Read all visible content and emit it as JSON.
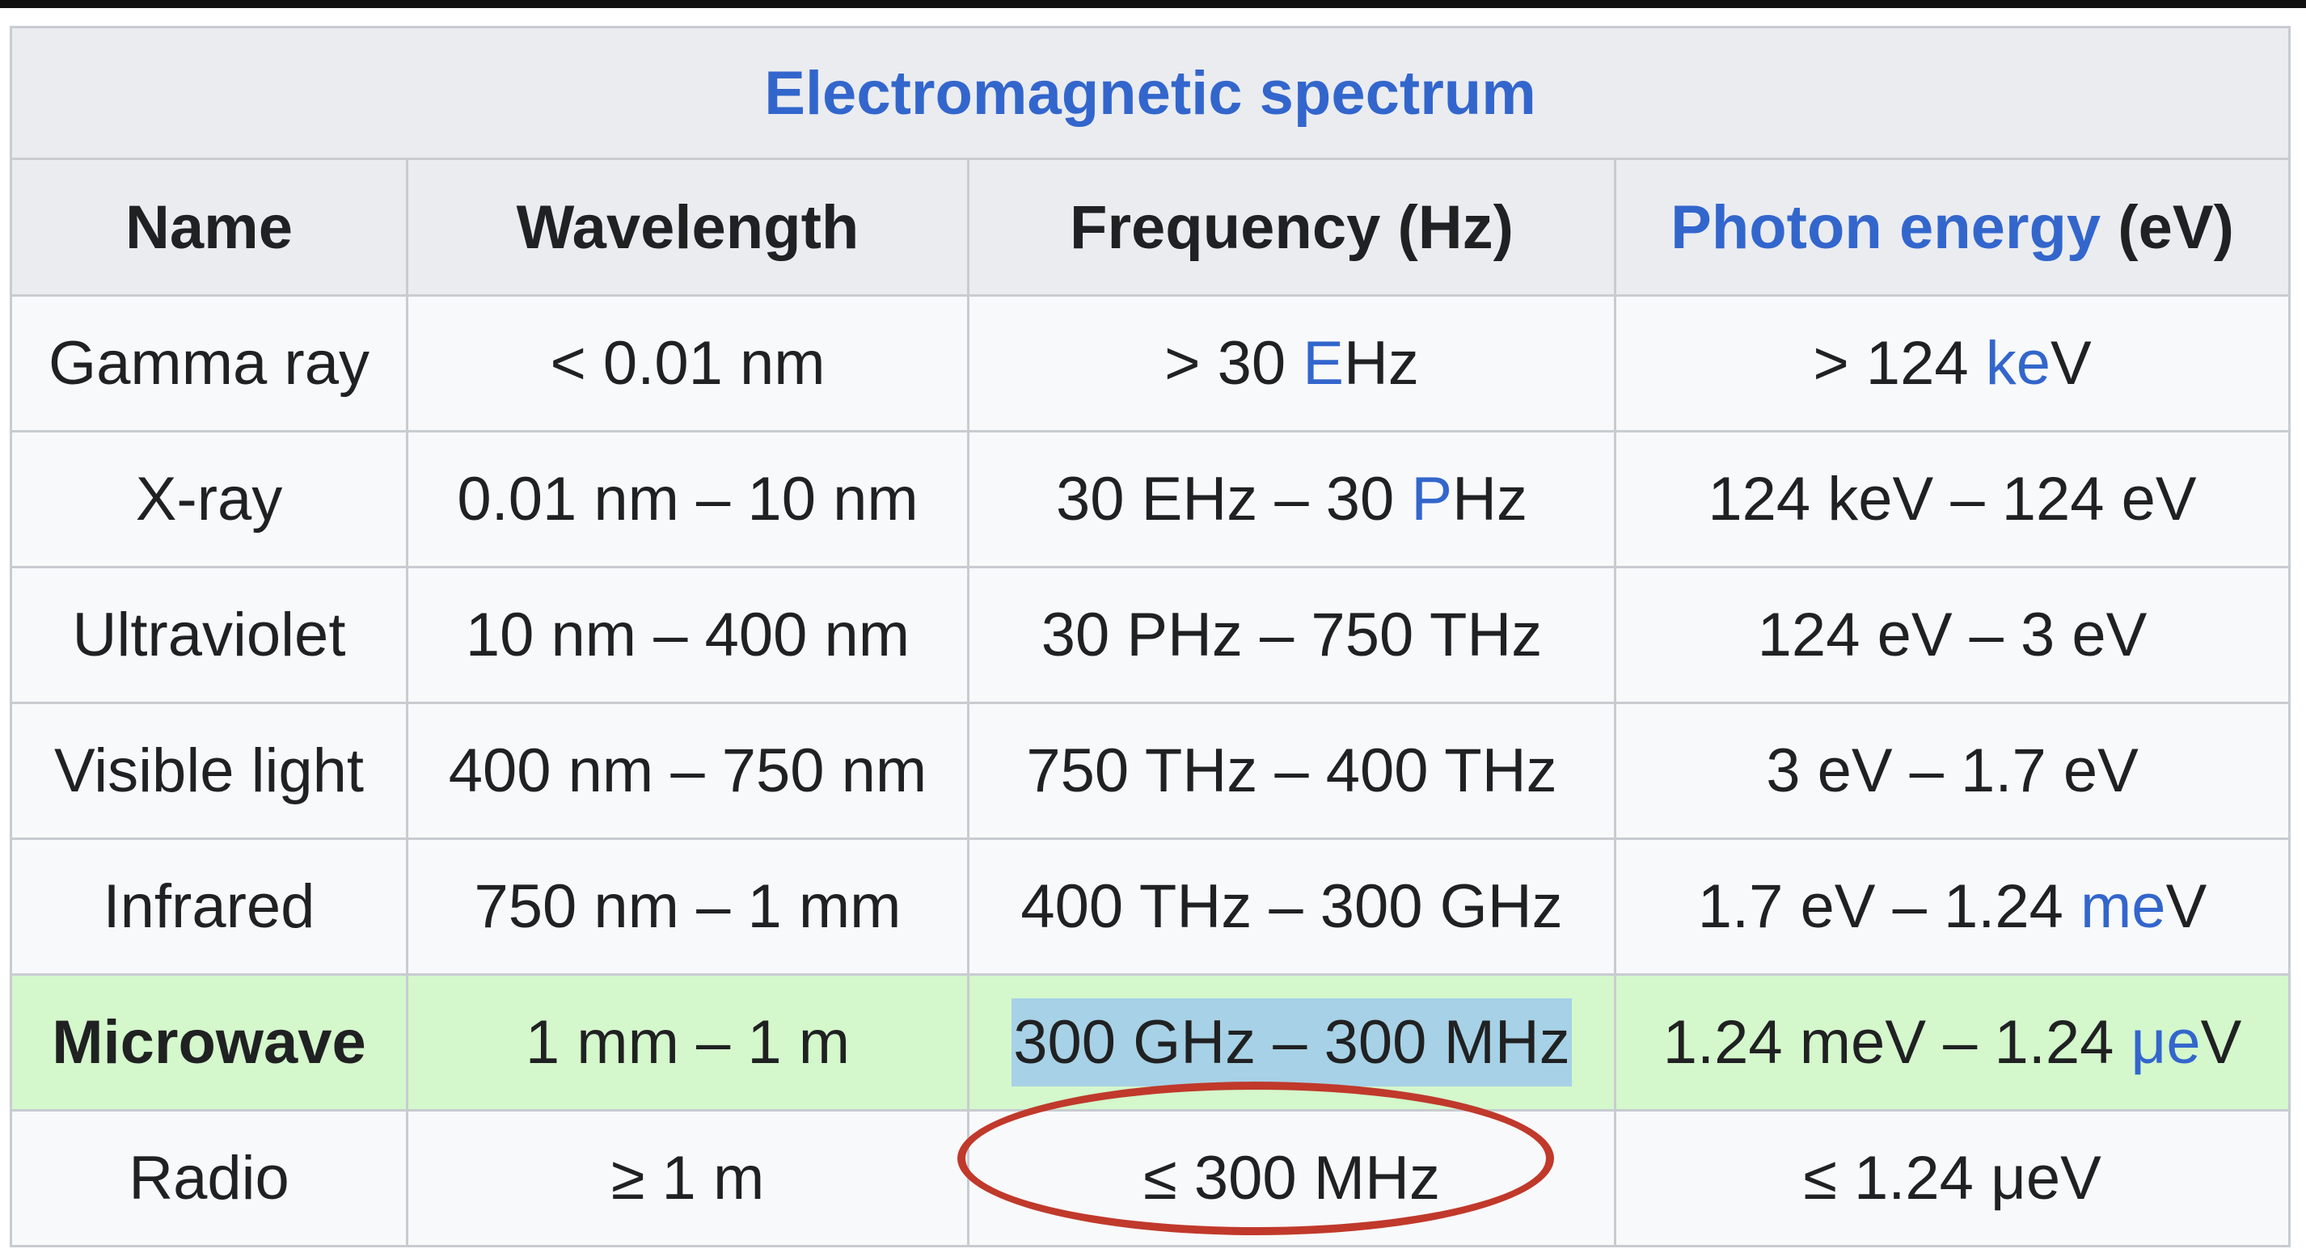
{
  "table": {
    "caption": "Electromagnetic spectrum",
    "headers": {
      "name": "Name",
      "wavelength": "Wavelength",
      "frequency": "Frequency (Hz)",
      "energy_label": "Photon energy",
      "energy_unit": " (eV)"
    },
    "rows": [
      {
        "name": "Gamma ray",
        "wavelength": "< 0.01 nm",
        "frequency": {
          "pre": "> 30 ",
          "link": "E",
          "post": "Hz"
        },
        "energy": {
          "pre": "> 124 ",
          "link": "ke",
          "post": "V"
        }
      },
      {
        "name": "X-ray",
        "wavelength": "0.01 nm – 10 nm",
        "frequency": {
          "pre": "30 EHz – 30 ",
          "link": "P",
          "post": "Hz"
        },
        "energy": "124 keV – 124 eV"
      },
      {
        "name": "Ultraviolet",
        "wavelength": "10 nm – 400 nm",
        "frequency": "30 PHz – 750 THz",
        "energy": "124 eV – 3 eV"
      },
      {
        "name": "Visible light",
        "wavelength": "400 nm – 750 nm",
        "frequency": "750 THz – 400 THz",
        "energy": "3 eV – 1.7 eV"
      },
      {
        "name": "Infrared",
        "wavelength": "750 nm – 1 mm",
        "frequency": "400 THz – 300 GHz",
        "energy": {
          "pre": "1.7 eV – 1.24 ",
          "link": "me",
          "post": "V"
        }
      },
      {
        "name": "Microwave",
        "wavelength": "1 mm – 1 m",
        "frequency": "300 GHz – 300 MHz",
        "energy": {
          "pre": "1.24 meV – 1.24 ",
          "link": "μe",
          "post": "V"
        }
      },
      {
        "name": "Radio",
        "wavelength": "≥ 1 m",
        "frequency": "≤ 300 MHz",
        "energy": "≤ 1.24 μeV"
      }
    ]
  },
  "colors": {
    "link": "#3366cc",
    "header_bg": "#eaecf0",
    "cell_bg": "#f8f9fa",
    "highlight_row_bg": "#d4f7cc",
    "selection_bg": "#a7d1e6",
    "annotation_circle": "#c0392b"
  }
}
